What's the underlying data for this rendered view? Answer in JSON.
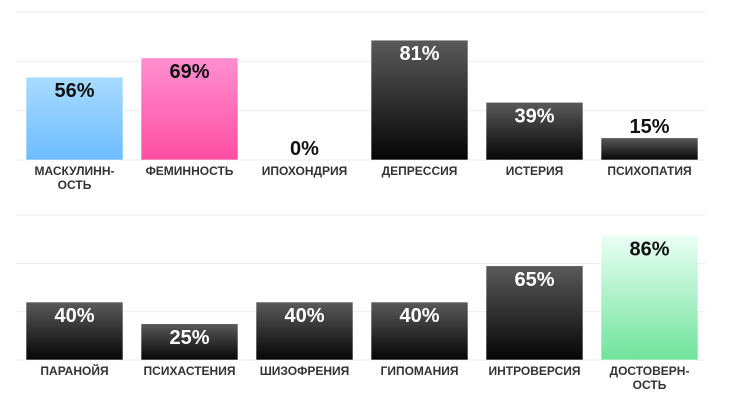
{
  "chart_data": [
    {
      "type": "bar",
      "categories": [
        "МАСКУЛИНН-ОСТЬ",
        "ФЕМИННОСТЬ",
        "ИПОХОНДРИЯ",
        "ДЕПРЕССИЯ",
        "ИСТЕРИЯ",
        "ПСИХОПАТИЯ"
      ],
      "values": [
        56,
        69,
        0,
        81,
        39,
        15
      ],
      "value_labels": [
        "56%",
        "69%",
        "0%",
        "81%",
        "39%",
        "15%"
      ],
      "colors": [
        [
          "#a9dbff",
          "#6cbcff"
        ],
        [
          "#ff8fcf",
          "#ff4ea2"
        ],
        [
          "#5a5a5a",
          "#050505"
        ],
        [
          "#5a5a5a",
          "#050505"
        ],
        [
          "#5a5a5a",
          "#050505"
        ],
        [
          "#5a5a5a",
          "#050505"
        ]
      ],
      "ylim": [
        0,
        100
      ],
      "grid": true
    },
    {
      "type": "bar",
      "categories": [
        "ПАРАНОЙЯ",
        "ПСИХАСТЕНИЯ",
        "ШИЗОФРЕНИЯ",
        "ГИПОМАНИЯ",
        "ИНТРОВЕРСИЯ",
        "ДОСТОВЕРН-ОСТЬ"
      ],
      "values": [
        40,
        25,
        40,
        40,
        65,
        86
      ],
      "value_labels": [
        "40%",
        "25%",
        "40%",
        "40%",
        "65%",
        "86%"
      ],
      "colors": [
        [
          "#5a5a5a",
          "#050505"
        ],
        [
          "#5a5a5a",
          "#050505"
        ],
        [
          "#5a5a5a",
          "#050505"
        ],
        [
          "#5a5a5a",
          "#050505"
        ],
        [
          "#5a5a5a",
          "#050505"
        ],
        [
          "#eafff6",
          "#6fe39b"
        ]
      ],
      "ylim": [
        0,
        100
      ],
      "grid": true
    }
  ]
}
